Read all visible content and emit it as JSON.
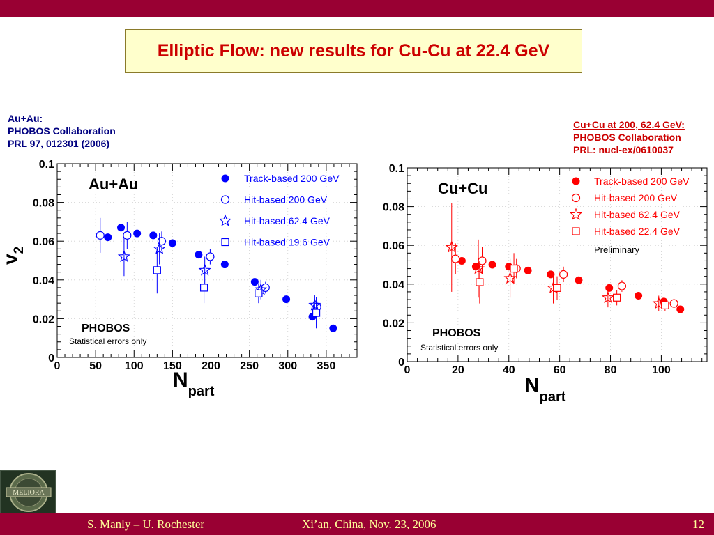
{
  "slide": {
    "title": "Elliptic Flow: new results for Cu-Cu at 22.4 GeV",
    "left_ref": {
      "head": "Au+Au:",
      "line1": "PHOBOS Collaboration",
      "line2": "PRL 97, 012301 (2006)"
    },
    "right_ref": {
      "head": "Cu+Cu at 200, 62.4 GeV:",
      "line1": "PHOBOS Collaboration",
      "line2": "PRL: nucl-ex/0610037"
    },
    "footer": {
      "author": "S. Manly – U. Rochester",
      "event": "Xi’an, China, Nov. 23, 2006",
      "page": "12"
    },
    "logo_text": "MELIORA",
    "colors": {
      "bar": "#990033",
      "title_text": "#cc0000",
      "title_bg": "#ffffcc",
      "footer_text": "#ffff99",
      "blue": "#0000ff",
      "red": "#ff0000"
    }
  },
  "chart_data": [
    {
      "type": "scatter",
      "panel_title": "Au+Au",
      "xlabel_main": "N",
      "xlabel_sub": "part",
      "ylabel_main": "v",
      "ylabel_sub": "2",
      "xlim": [
        0,
        390
      ],
      "ylim": [
        0,
        0.1
      ],
      "xticks": [
        0,
        50,
        100,
        150,
        200,
        250,
        300,
        350
      ],
      "xtick_labels": [
        "0",
        "50",
        "100",
        "150",
        "200",
        "250",
        "300",
        "350"
      ],
      "yticks": [
        0,
        0.02,
        0.04,
        0.06,
        0.08,
        0.1
      ],
      "ytick_labels": [
        "0",
        "0.02",
        "0.04",
        "0.06",
        "0.08",
        "0.1"
      ],
      "annotation": "PHOBOS",
      "annotation2": "Statistical errors only",
      "legend_position": "top-right",
      "color": "#0000ff",
      "series": [
        {
          "name": "Track-based 200 GeV",
          "marker": "filled-circle",
          "x": [
            66,
            83,
            104,
            125,
            150,
            184,
            218,
            257,
            298,
            332,
            359
          ],
          "y": [
            0.062,
            0.067,
            0.064,
            0.063,
            0.059,
            0.053,
            0.048,
            0.039,
            0.03,
            0.021,
            0.015
          ],
          "err": [
            0,
            0,
            0,
            0,
            0,
            0,
            0,
            0,
            0,
            0,
            0
          ]
        },
        {
          "name": "Hit-based 200 GeV",
          "marker": "open-circle",
          "x": [
            56,
            91,
            136,
            199,
            271,
            338
          ],
          "y": [
            0.063,
            0.063,
            0.06,
            0.052,
            0.036,
            0.026
          ],
          "err": [
            0.009,
            0.007,
            0.005,
            0.004,
            0.003,
            0.003
          ]
        },
        {
          "name": "Hit-based 62.4 GeV",
          "marker": "open-star",
          "x": [
            87,
            133,
            192,
            265,
            335
          ],
          "y": [
            0.052,
            0.056,
            0.045,
            0.035,
            0.027
          ],
          "err": [
            0.01,
            0.008,
            0.007,
            0.005,
            0.005
          ]
        },
        {
          "name": "Hit-based 19.6 GeV",
          "marker": "open-square",
          "x": [
            130,
            191,
            262,
            337
          ],
          "y": [
            0.045,
            0.036,
            0.033,
            0.023
          ],
          "err": [
            0.012,
            0.008,
            0.005,
            0.008
          ]
        }
      ]
    },
    {
      "type": "scatter",
      "panel_title": "Cu+Cu",
      "xlabel_main": "N",
      "xlabel_sub": "part",
      "xlim": [
        0,
        118
      ],
      "ylim": [
        0,
        0.1
      ],
      "xticks": [
        0,
        20,
        40,
        60,
        80,
        100
      ],
      "xtick_labels": [
        "0",
        "20",
        "40",
        "60",
        "80",
        "100"
      ],
      "yticks": [
        0,
        0.02,
        0.04,
        0.06,
        0.08,
        0.1
      ],
      "ytick_labels": [
        "0",
        "0.02",
        "0.04",
        "0.06",
        "0.08",
        "0.1"
      ],
      "annotation": "PHOBOS",
      "annotation2": "Statistical errors only",
      "legend_note": "Preliminary",
      "legend_position": "top-right",
      "color": "#ff0000",
      "series": [
        {
          "name": "Track-based 200 GeV",
          "marker": "filled-circle",
          "x": [
            21.5,
            27,
            33.5,
            40,
            47.5,
            56.5,
            67.5,
            79.5,
            91,
            101,
            107.5
          ],
          "y": [
            0.052,
            0.049,
            0.05,
            0.049,
            0.047,
            0.045,
            0.042,
            0.038,
            0.034,
            0.031,
            0.027
          ],
          "err": [
            0,
            0,
            0,
            0,
            0,
            0,
            0,
            0,
            0,
            0,
            0
          ]
        },
        {
          "name": "Hit-based 200 GeV",
          "marker": "open-circle",
          "x": [
            19,
            29.5,
            43,
            61.5,
            84.5,
            105
          ],
          "y": [
            0.053,
            0.052,
            0.048,
            0.045,
            0.039,
            0.03
          ],
          "err": [
            0.008,
            0.007,
            0.005,
            0.004,
            0.003,
            0.002
          ]
        },
        {
          "name": "Hit-based 62.4 GeV",
          "marker": "open-star",
          "x": [
            17.5,
            28,
            40.5,
            57.5,
            79,
            99
          ],
          "y": [
            0.059,
            0.048,
            0.043,
            0.038,
            0.033,
            0.03
          ],
          "err": [
            0.023,
            0.015,
            0.01,
            0.008,
            0.005,
            0.004
          ]
        },
        {
          "name": "Hit-based 22.4 GeV",
          "marker": "open-square",
          "x": [
            28.5,
            42,
            59,
            82.5,
            101.5
          ],
          "y": [
            0.041,
            0.048,
            0.038,
            0.033,
            0.029
          ],
          "err": [
            0.011,
            0.008,
            0.006,
            0.004,
            0.003
          ]
        }
      ]
    }
  ]
}
